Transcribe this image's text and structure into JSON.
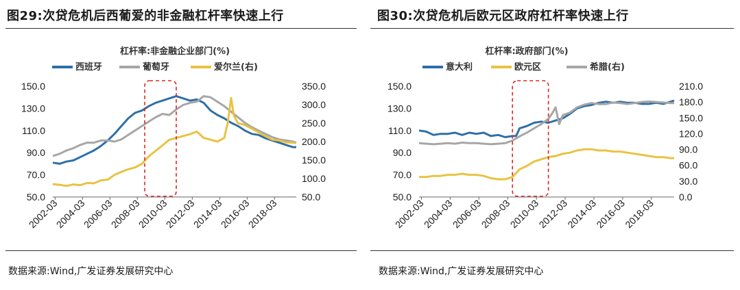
{
  "chart_data": [
    {
      "type": "line",
      "title": "图29:次贷危机后西葡爱的非金融杠杆率快速上行",
      "subtitle": "杠杆率:非金融企业部门(%)",
      "source": "数据来源:Wind,广发证券发展研究中心",
      "x_labels": [
        "2002-03",
        "2004-03",
        "2006-03",
        "2008-03",
        "2010-03",
        "2012-03",
        "2014-03",
        "2016-03",
        "2018-03"
      ],
      "x_start": 2002.0,
      "x_end": 2019.75,
      "ylim": [
        50,
        150
      ],
      "y_ticks": [
        "50.0",
        "70.0",
        "90.0",
        "110.0",
        "130.0",
        "150.0"
      ],
      "y2lim": [
        50,
        350
      ],
      "y2_ticks": [
        "50.0",
        "100.0",
        "150.0",
        "200.0",
        "250.0",
        "300.0",
        "350.0"
      ],
      "highlight": [
        2008.7,
        2011.0
      ],
      "series": [
        {
          "name": "西班牙",
          "axis": "left",
          "color": "#2e6fa7",
          "points": [
            [
              2002.0,
              81
            ],
            [
              2002.5,
              80
            ],
            [
              2003.0,
              82
            ],
            [
              2003.5,
              83
            ],
            [
              2004.0,
              86
            ],
            [
              2004.5,
              89
            ],
            [
              2005.0,
              92
            ],
            [
              2005.5,
              96
            ],
            [
              2006.0,
              101
            ],
            [
              2006.5,
              107
            ],
            [
              2007.0,
              114
            ],
            [
              2007.5,
              121
            ],
            [
              2008.0,
              126
            ],
            [
              2008.5,
              128
            ],
            [
              2009.0,
              132
            ],
            [
              2009.5,
              135
            ],
            [
              2010.0,
              137
            ],
            [
              2010.5,
              139
            ],
            [
              2011.0,
              141
            ],
            [
              2011.5,
              139
            ],
            [
              2012.0,
              137
            ],
            [
              2012.5,
              138
            ],
            [
              2013.0,
              135
            ],
            [
              2013.5,
              128
            ],
            [
              2014.0,
              124
            ],
            [
              2014.5,
              121
            ],
            [
              2015.0,
              117
            ],
            [
              2015.5,
              114
            ],
            [
              2016.0,
              110
            ],
            [
              2016.5,
              107
            ],
            [
              2017.0,
              106
            ],
            [
              2017.5,
              103
            ],
            [
              2018.0,
              101
            ],
            [
              2018.5,
              99
            ],
            [
              2019.0,
              97
            ],
            [
              2019.5,
              95
            ],
            [
              2019.75,
              95
            ]
          ]
        },
        {
          "name": "葡萄牙",
          "axis": "left",
          "color": "#a6a6a6",
          "points": [
            [
              2002.0,
              87
            ],
            [
              2002.5,
              89
            ],
            [
              2003.0,
              92
            ],
            [
              2003.5,
              94
            ],
            [
              2004.0,
              97
            ],
            [
              2004.5,
              99
            ],
            [
              2005.0,
              99
            ],
            [
              2005.5,
              101
            ],
            [
              2006.0,
              101
            ],
            [
              2006.5,
              100
            ],
            [
              2007.0,
              102
            ],
            [
              2007.5,
              106
            ],
            [
              2008.0,
              110
            ],
            [
              2008.5,
              114
            ],
            [
              2009.0,
              118
            ],
            [
              2009.5,
              122
            ],
            [
              2010.0,
              125
            ],
            [
              2010.5,
              124
            ],
            [
              2011.0,
              129
            ],
            [
              2011.5,
              133
            ],
            [
              2012.0,
              135
            ],
            [
              2012.5,
              136
            ],
            [
              2013.0,
              141
            ],
            [
              2013.5,
              140
            ],
            [
              2014.0,
              136
            ],
            [
              2014.5,
              132
            ],
            [
              2015.0,
              127
            ],
            [
              2015.5,
              122
            ],
            [
              2016.0,
              117
            ],
            [
              2016.5,
              113
            ],
            [
              2017.0,
              110
            ],
            [
              2017.5,
              107
            ],
            [
              2018.0,
              104
            ],
            [
              2018.5,
              102
            ],
            [
              2019.0,
              101
            ],
            [
              2019.5,
              100
            ],
            [
              2019.75,
              99
            ]
          ]
        },
        {
          "name": "爱尔兰(右)",
          "axis": "right",
          "color": "#e8c341",
          "points": [
            [
              2002.0,
              85
            ],
            [
              2002.5,
              83
            ],
            [
              2003.0,
              80
            ],
            [
              2003.5,
              84
            ],
            [
              2004.0,
              82
            ],
            [
              2004.5,
              88
            ],
            [
              2005.0,
              87
            ],
            [
              2005.5,
              95
            ],
            [
              2006.0,
              97
            ],
            [
              2006.5,
              110
            ],
            [
              2007.0,
              118
            ],
            [
              2007.5,
              125
            ],
            [
              2008.0,
              130
            ],
            [
              2008.5,
              140
            ],
            [
              2009.0,
              160
            ],
            [
              2009.5,
              175
            ],
            [
              2010.0,
              190
            ],
            [
              2010.5,
              205
            ],
            [
              2011.0,
              210
            ],
            [
              2011.5,
              215
            ],
            [
              2012.0,
              220
            ],
            [
              2012.5,
              227
            ],
            [
              2013.0,
              210
            ],
            [
              2013.5,
              205
            ],
            [
              2014.0,
              200
            ],
            [
              2014.5,
              210
            ],
            [
              2014.75,
              250
            ],
            [
              2015.0,
              318
            ],
            [
              2015.2,
              270
            ],
            [
              2015.5,
              250
            ],
            [
              2016.0,
              245
            ],
            [
              2016.5,
              235
            ],
            [
              2017.0,
              225
            ],
            [
              2017.5,
              215
            ],
            [
              2018.0,
              205
            ],
            [
              2018.5,
              203
            ],
            [
              2019.0,
              198
            ],
            [
              2019.5,
              197
            ],
            [
              2019.75,
              196
            ]
          ]
        }
      ]
    },
    {
      "type": "line",
      "title": "图30:次贷危机后欧元区政府杠杆率快速上行",
      "subtitle": "杠杆率:政府部门(%)",
      "source": "数据来源:Wind,广发证券发展研究中心",
      "x_labels": [
        "2002-03",
        "2004-03",
        "2006-03",
        "2008-03",
        "2010-03",
        "2012-03",
        "2014-03",
        "2016-03",
        "2018-03"
      ],
      "x_start": 2002.0,
      "x_end": 2019.75,
      "ylim": [
        50,
        150
      ],
      "y_ticks": [
        "50.0",
        "70.0",
        "90.0",
        "110.0",
        "130.0",
        "150.0"
      ],
      "y2lim": [
        0,
        210
      ],
      "y2_ticks": [
        "0.0",
        "30.0",
        "60.0",
        "90.0",
        "120.0",
        "150.0",
        "180.0",
        "210.0"
      ],
      "highlight": [
        2008.5,
        2011.0
      ],
      "series": [
        {
          "name": "意大利",
          "axis": "left",
          "color": "#2e6fa7",
          "points": [
            [
              2002.0,
              110
            ],
            [
              2002.5,
              109
            ],
            [
              2003.0,
              106
            ],
            [
              2003.5,
              107
            ],
            [
              2004.0,
              107
            ],
            [
              2004.5,
              108
            ],
            [
              2005.0,
              106
            ],
            [
              2005.5,
              108
            ],
            [
              2006.0,
              107
            ],
            [
              2006.5,
              108
            ],
            [
              2007.0,
              105
            ],
            [
              2007.5,
              106
            ],
            [
              2008.0,
              104
            ],
            [
              2008.5,
              105
            ],
            [
              2008.75,
              105
            ],
            [
              2009.0,
              112
            ],
            [
              2009.5,
              114
            ],
            [
              2010.0,
              117
            ],
            [
              2010.5,
              118
            ],
            [
              2011.0,
              117
            ],
            [
              2011.5,
              119
            ],
            [
              2012.0,
              121
            ],
            [
              2012.5,
              125
            ],
            [
              2013.0,
              130
            ],
            [
              2013.5,
              132
            ],
            [
              2014.0,
              133
            ],
            [
              2014.5,
              135
            ],
            [
              2015.0,
              136
            ],
            [
              2015.5,
              135
            ],
            [
              2016.0,
              136
            ],
            [
              2016.5,
              135
            ],
            [
              2017.0,
              135
            ],
            [
              2017.5,
              134
            ],
            [
              2018.0,
              134
            ],
            [
              2018.5,
              135
            ],
            [
              2019.0,
              134
            ],
            [
              2019.5,
              136
            ],
            [
              2019.75,
              137
            ]
          ]
        },
        {
          "name": "欧元区",
          "axis": "left",
          "color": "#e8c341",
          "points": [
            [
              2002.0,
              68
            ],
            [
              2002.5,
              68
            ],
            [
              2003.0,
              69
            ],
            [
              2003.5,
              69
            ],
            [
              2004.0,
              70
            ],
            [
              2004.5,
              70
            ],
            [
              2005.0,
              71
            ],
            [
              2005.5,
              70
            ],
            [
              2006.0,
              70
            ],
            [
              2006.5,
              69
            ],
            [
              2007.0,
              67
            ],
            [
              2007.5,
              66
            ],
            [
              2008.0,
              66
            ],
            [
              2008.5,
              68
            ],
            [
              2009.0,
              75
            ],
            [
              2009.5,
              78
            ],
            [
              2010.0,
              82
            ],
            [
              2010.5,
              84
            ],
            [
              2011.0,
              86
            ],
            [
              2011.5,
              87
            ],
            [
              2012.0,
              89
            ],
            [
              2012.5,
              90
            ],
            [
              2013.0,
              92
            ],
            [
              2013.5,
              93
            ],
            [
              2014.0,
              93
            ],
            [
              2014.5,
              92
            ],
            [
              2015.0,
              92
            ],
            [
              2015.5,
              91
            ],
            [
              2016.0,
              91
            ],
            [
              2016.5,
              90
            ],
            [
              2017.0,
              89
            ],
            [
              2017.5,
              88
            ],
            [
              2018.0,
              87
            ],
            [
              2018.5,
              86
            ],
            [
              2019.0,
              86
            ],
            [
              2019.5,
              85
            ],
            [
              2019.75,
              85
            ]
          ]
        },
        {
          "name": "希腊(右)",
          "axis": "right",
          "color": "#a6a6a6",
          "points": [
            [
              2002.0,
              102
            ],
            [
              2002.5,
              101
            ],
            [
              2003.0,
              100
            ],
            [
              2003.5,
              101
            ],
            [
              2004.0,
              102
            ],
            [
              2004.5,
              101
            ],
            [
              2005.0,
              103
            ],
            [
              2005.5,
              102
            ],
            [
              2006.0,
              102
            ],
            [
              2006.5,
              101
            ],
            [
              2007.0,
              100
            ],
            [
              2007.5,
              101
            ],
            [
              2008.0,
              102
            ],
            [
              2008.5,
              107
            ],
            [
              2009.0,
              115
            ],
            [
              2009.5,
              122
            ],
            [
              2010.0,
              130
            ],
            [
              2010.5,
              138
            ],
            [
              2011.0,
              148
            ],
            [
              2011.3,
              160
            ],
            [
              2011.5,
              170
            ],
            [
              2011.75,
              138
            ],
            [
              2012.0,
              155
            ],
            [
              2012.5,
              160
            ],
            [
              2013.0,
              170
            ],
            [
              2013.5,
              175
            ],
            [
              2014.0,
              178
            ],
            [
              2014.5,
              176
            ],
            [
              2015.0,
              176
            ],
            [
              2015.5,
              179
            ],
            [
              2016.0,
              178
            ],
            [
              2016.5,
              176
            ],
            [
              2017.0,
              178
            ],
            [
              2017.5,
              180
            ],
            [
              2018.0,
              181
            ],
            [
              2018.5,
              180
            ],
            [
              2019.0,
              179
            ],
            [
              2019.5,
              178
            ],
            [
              2019.75,
              178
            ]
          ]
        }
      ]
    }
  ]
}
